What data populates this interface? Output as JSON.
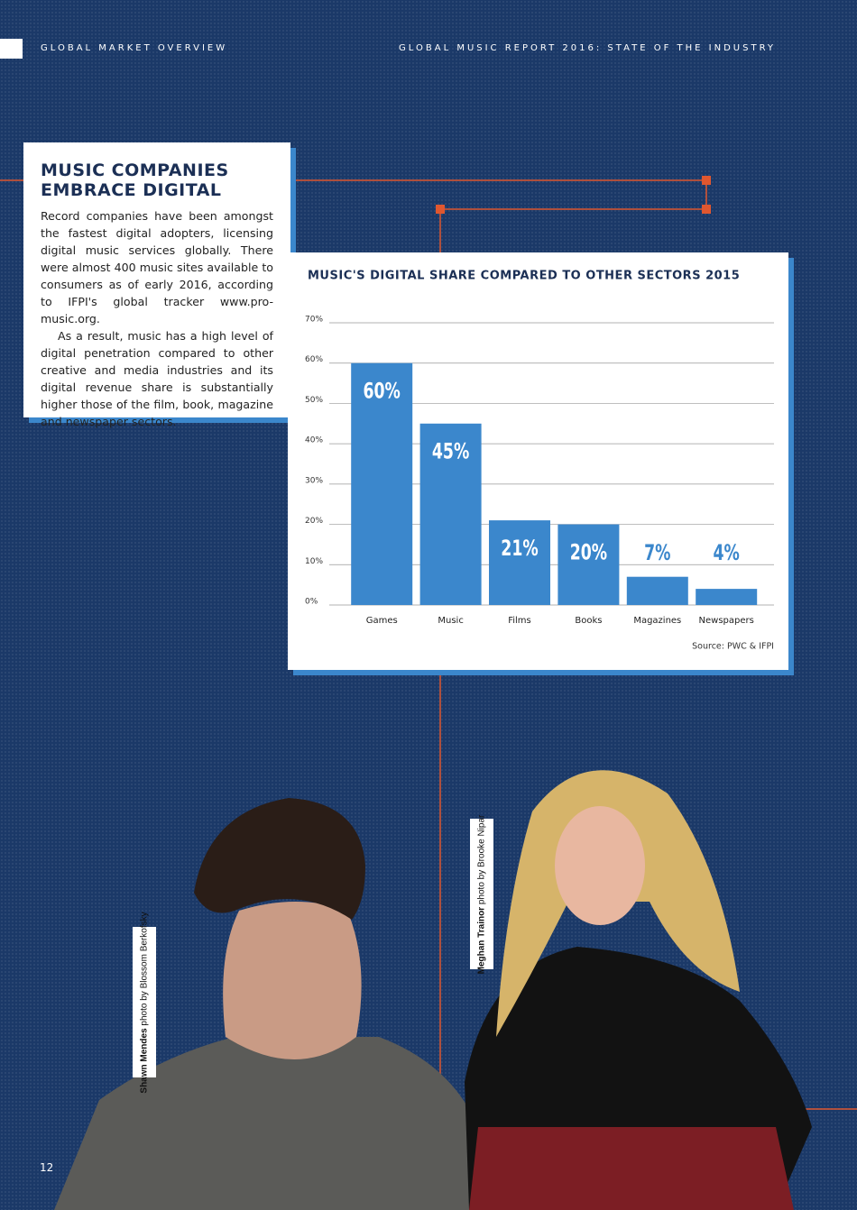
{
  "header": {
    "section": "GLOBAL MARKET OVERVIEW",
    "report": "GLOBAL MUSIC REPORT 2016: STATE OF THE INDUSTRY"
  },
  "article": {
    "title": "MUSIC COMPANIES EMBRACE DIGITAL",
    "paragraphs": [
      "Record companies have been amongst the fastest digital adopters, licensing digital music services globally. There were almost 400 music sites available to consumers as of early 2016, according to IFPI's global tracker www.pro-music.org.",
      "As a result, music has a high level of digital penetration compared to other creative and media industries and its digital revenue share is substantially higher those of the film, book, magazine and newspaper sectors."
    ]
  },
  "chart_data": {
    "type": "bar",
    "title": "MUSIC'S DIGITAL SHARE COMPARED TO OTHER SECTORS 2015",
    "categories": [
      "Games",
      "Music",
      "Films",
      "Books",
      "Magazines",
      "Newspapers"
    ],
    "values": [
      60,
      45,
      21,
      20,
      7,
      4
    ],
    "value_labels": [
      "60%",
      "45%",
      "21%",
      "20%",
      "7%",
      "4%"
    ],
    "color": "#3b87cc",
    "ylim": [
      0,
      70
    ],
    "yticks": [
      {
        "value": 0,
        "label": "0%"
      },
      {
        "value": 10,
        "label": "10%"
      },
      {
        "value": 20,
        "label": "20%"
      },
      {
        "value": 30,
        "label": "30%"
      },
      {
        "value": 40,
        "label": "40%"
      },
      {
        "value": 50,
        "label": "50%"
      },
      {
        "value": 60,
        "label": "60%"
      },
      {
        "value": 70,
        "label": "70%"
      }
    ],
    "grid": true,
    "source": "Source: PWC & IFPI"
  },
  "captions": [
    {
      "name": "Shawn Mendes",
      "credit": "photo by Blossom Berkofsky"
    },
    {
      "name": "Meghan Trainor",
      "credit": "photo by Brooke Nipar"
    }
  ],
  "page_number": "12"
}
